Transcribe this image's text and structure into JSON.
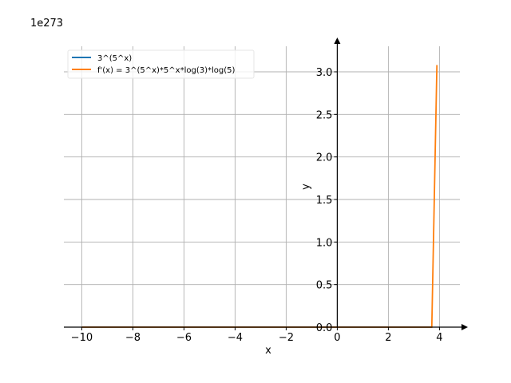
{
  "chart_data": {
    "type": "line",
    "offset_label": "1e273",
    "xlabel": "x",
    "ylabel": "y",
    "xlim": [
      -10.7,
      4.8
    ],
    "ylim": [
      0,
      3.3
    ],
    "x_ticks": [
      -10,
      -8,
      -6,
      -4,
      -2,
      0,
      2,
      4
    ],
    "x_tick_labels": [
      "−10",
      "−8",
      "−6",
      "−4",
      "−2",
      "0",
      "2",
      "4"
    ],
    "y_ticks": [
      0.0,
      0.5,
      1.0,
      1.5,
      2.0,
      2.5,
      3.0
    ],
    "y_tick_labels": [
      "0.0",
      "0.5",
      "1.0",
      "1.5",
      "2.0",
      "2.5",
      "3.0"
    ],
    "grid": true,
    "legend_position": "top-left",
    "series": [
      {
        "name": "3^(5^x)",
        "color": "#1f77b4",
        "x": [
          -10,
          -6,
          -2,
          0,
          2,
          3.6,
          3.7
        ],
        "y": [
          0,
          0,
          0,
          0,
          0,
          0,
          0
        ]
      },
      {
        "name": "f'(x) = 3^(5^x)*5^x*log(3)*log(5)",
        "color": "#ff7f0e",
        "x": [
          -10,
          -6,
          -2,
          0,
          2,
          3.6,
          3.7,
          3.9
        ],
        "y": [
          0,
          0,
          0,
          0,
          0,
          0,
          0,
          3.08
        ]
      }
    ]
  }
}
